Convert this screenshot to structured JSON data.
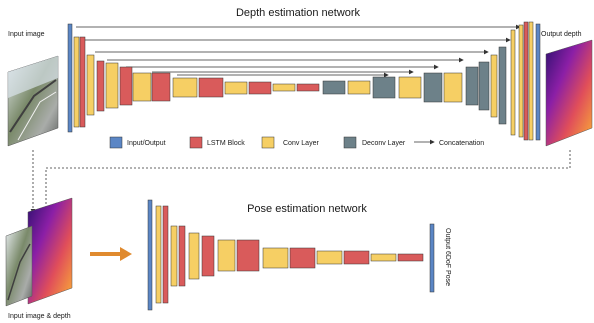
{
  "depth": {
    "title": "Depth estimation network",
    "input_label": "Input image",
    "output_label": "Output depth"
  },
  "legend": {
    "input_output": "Input/Output",
    "lstm": "LSTM Block",
    "conv": "Conv Layer",
    "deconv": "Deconv Layer",
    "concat": "Concatenation"
  },
  "pose": {
    "title": "Pose estimation network",
    "input_label": "Input image & depth",
    "output_label": "Output 6DoF Pose"
  },
  "colors": {
    "io": "#5b86c5",
    "lstm": "#d95b5b",
    "conv": "#f6cf64",
    "deconv": "#6d8189",
    "arrow_orange": "#e08a2e"
  }
}
